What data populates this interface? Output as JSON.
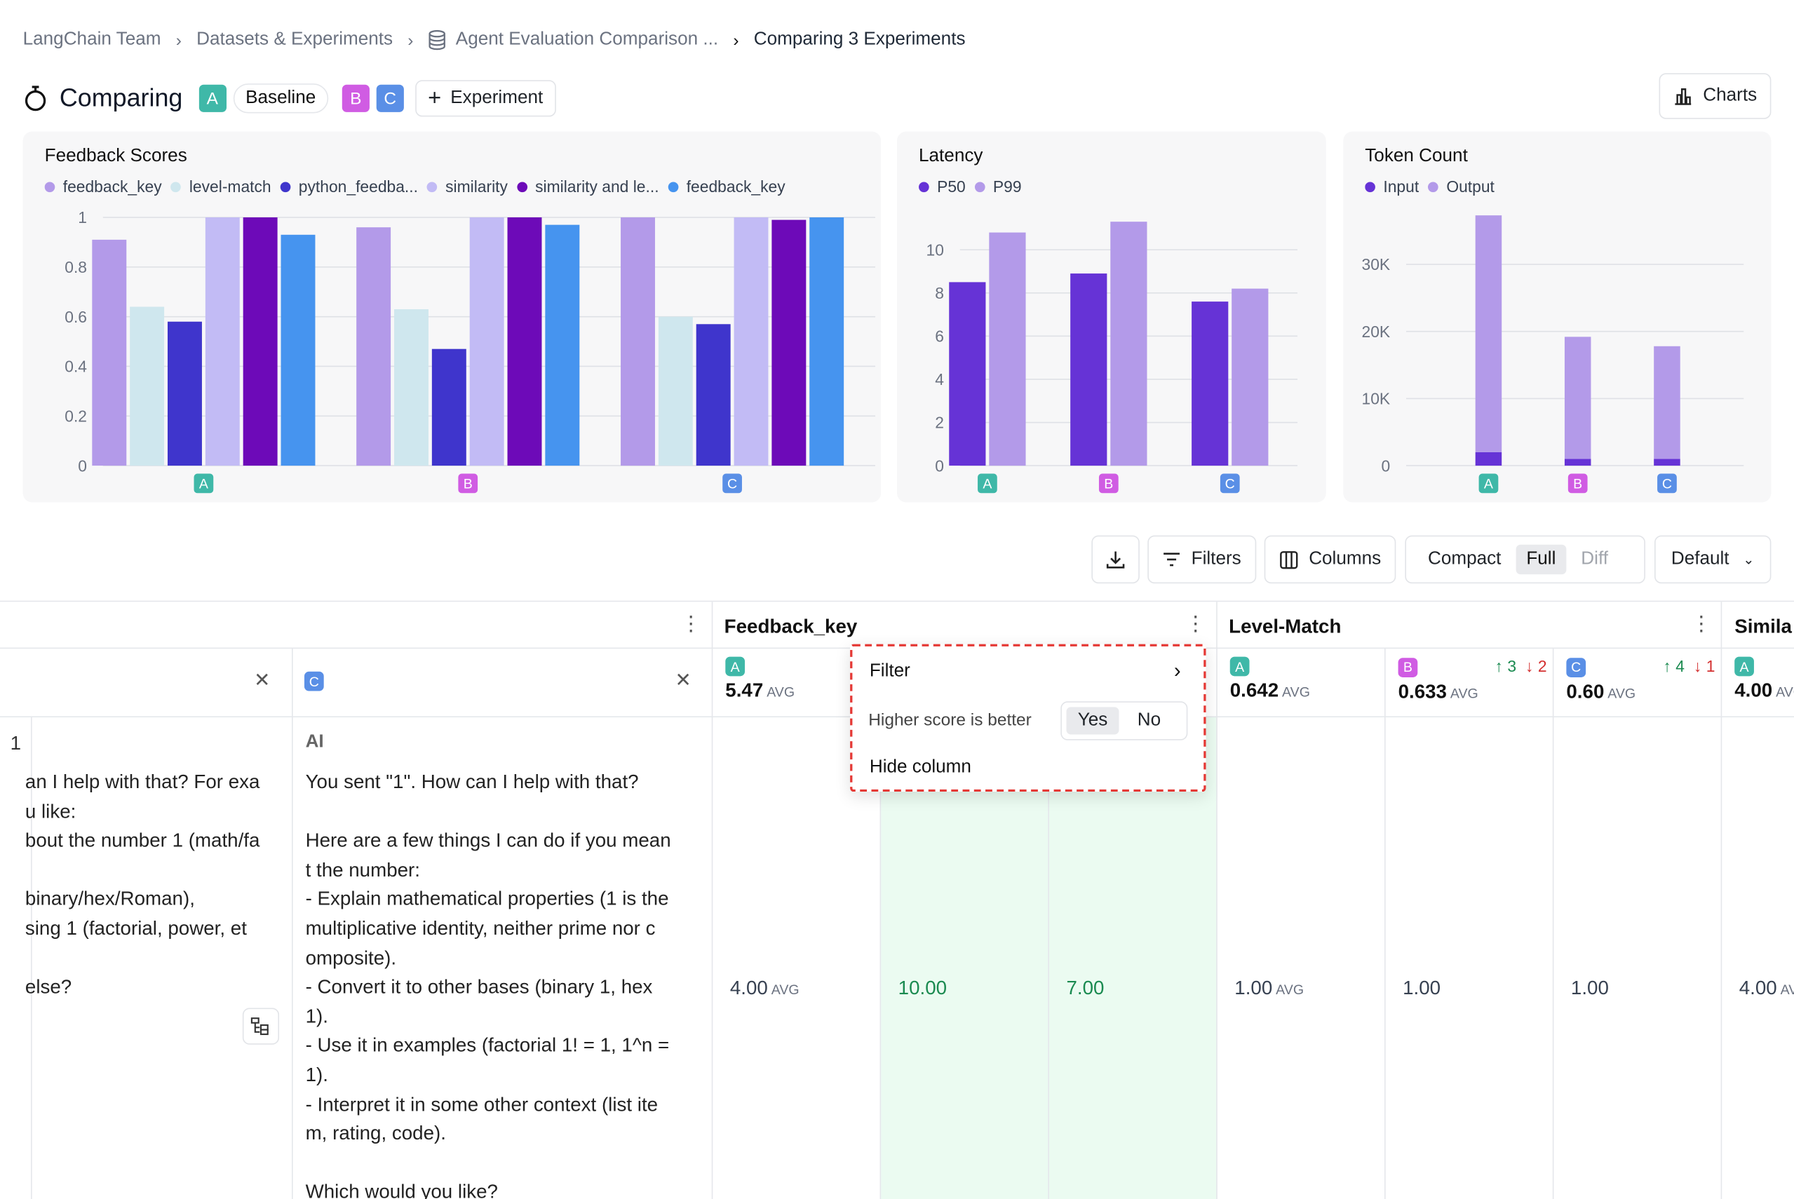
{
  "breadcrumbs": [
    "LangChain Team",
    "Datasets & Experiments",
    "Agent Evaluation Comparison ...",
    "Comparing 3 Experiments"
  ],
  "header": {
    "title": "Comparing",
    "badges": [
      "A",
      "B",
      "C"
    ],
    "baseline_label": "Baseline",
    "add_experiment_label": "Experiment",
    "charts_label": "Charts"
  },
  "colors": {
    "A": "#3fb8a8",
    "B": "#d05ce3",
    "C": "#5a8fe6",
    "highlight": "#ebfbf1",
    "menu_border": "#e53935"
  },
  "chart_data": [
    {
      "type": "bar",
      "title": "Feedback Scores",
      "categories": [
        "A",
        "B",
        "C"
      ],
      "ylim": [
        0,
        1
      ],
      "yticks": [
        "0",
        "0.2",
        "0.4",
        "0.6",
        "0.8",
        "1"
      ],
      "grid": true,
      "legend_position": "top",
      "series": [
        {
          "name": "feedback_key",
          "color": "#b39ae9",
          "values": [
            0.91,
            0.96,
            1.0
          ]
        },
        {
          "name": "level-match",
          "color": "#cfe7ee",
          "values": [
            0.64,
            0.63,
            0.6
          ]
        },
        {
          "name": "python_feedba...",
          "color": "#3f35cc",
          "values": [
            0.58,
            0.47,
            0.57
          ]
        },
        {
          "name": "similarity",
          "color": "#c2bbf5",
          "values": [
            1.0,
            1.0,
            1.0
          ]
        },
        {
          "name": "similarity and le...",
          "color": "#6d0ab8",
          "values": [
            1.0,
            1.0,
            0.99
          ]
        },
        {
          "name": "feedback_key",
          "color": "#4694ef",
          "values": [
            0.93,
            0.97,
            1.0
          ]
        }
      ]
    },
    {
      "type": "bar",
      "title": "Latency",
      "categories": [
        "A",
        "B",
        "C"
      ],
      "ylim": [
        0,
        11.5
      ],
      "yticks": [
        "0",
        "2",
        "4",
        "6",
        "8",
        "10"
      ],
      "grid": true,
      "legend_position": "top",
      "series": [
        {
          "name": "P50",
          "color": "#6633d6",
          "values": [
            8.5,
            8.9,
            7.6
          ]
        },
        {
          "name": "P99",
          "color": "#b39ae9",
          "values": [
            10.8,
            11.3,
            8.2
          ]
        }
      ]
    },
    {
      "type": "bar",
      "stacked": true,
      "title": "Token Count",
      "categories": [
        "A",
        "B",
        "C"
      ],
      "ylim": [
        0,
        37000
      ],
      "yticks": [
        "0",
        "10K",
        "20K",
        "30K"
      ],
      "grid": true,
      "legend_position": "top",
      "series": [
        {
          "name": "Input",
          "color": "#6633d6",
          "values": [
            2000,
            1000,
            1000
          ]
        },
        {
          "name": "Output",
          "color": "#b39ae9",
          "values": [
            35300,
            18200,
            16800
          ]
        }
      ]
    }
  ],
  "toolbar": {
    "filters_label": "Filters",
    "columns_label": "Columns",
    "view_modes": [
      "Compact",
      "Full",
      "Diff"
    ],
    "active_view": "Full",
    "sort_label": "Default"
  },
  "table": {
    "row_number": "1",
    "col_c_badge": "C",
    "ai_label": "AI",
    "left_text": "an I help with that? For exa\nu like:\nbout the number 1 (math/fa\n\nbinary/hex/Roman),\nsing 1 (factorial, power, et\n\nelse?",
    "c_text": "You sent \"1\". How can I help with that?\n\nHere are a few things I can do if you mean\nt the number:\n- Explain mathematical properties (1 is the\nmultiplicative identity, neither prime nor c\nomposite).\n- Convert it to other bases (binary 1, hex\n1).\n- Use it in examples (factorial 1! = 1, 1^n =\n1).\n- Interpret it in some other context (list ite\nm, rating, code).\n\nWhich would you like?",
    "feedback_key": {
      "header": "Feedback_key",
      "a_avg": "5.47",
      "avg_label": "AVG",
      "cell_a": "4.00",
      "cell_b": "10.00",
      "cell_c": "7.00"
    },
    "level_match": {
      "header": "Level-Match",
      "a_avg": "0.642",
      "b_avg": "0.633",
      "c_avg": "0.60",
      "b_up": "3",
      "b_down": "2",
      "c_up": "4",
      "c_down": "1",
      "cell_a": "1.00",
      "cell_b": "1.00",
      "cell_c": "1.00"
    },
    "similarity": {
      "header": "Simila",
      "a_avg": "4.00",
      "cell_a": "4.00"
    }
  },
  "column_menu": {
    "filter_label": "Filter",
    "higher_label": "Higher score is better",
    "yes_label": "Yes",
    "no_label": "No",
    "selected": "Yes",
    "hide_label": "Hide column"
  }
}
